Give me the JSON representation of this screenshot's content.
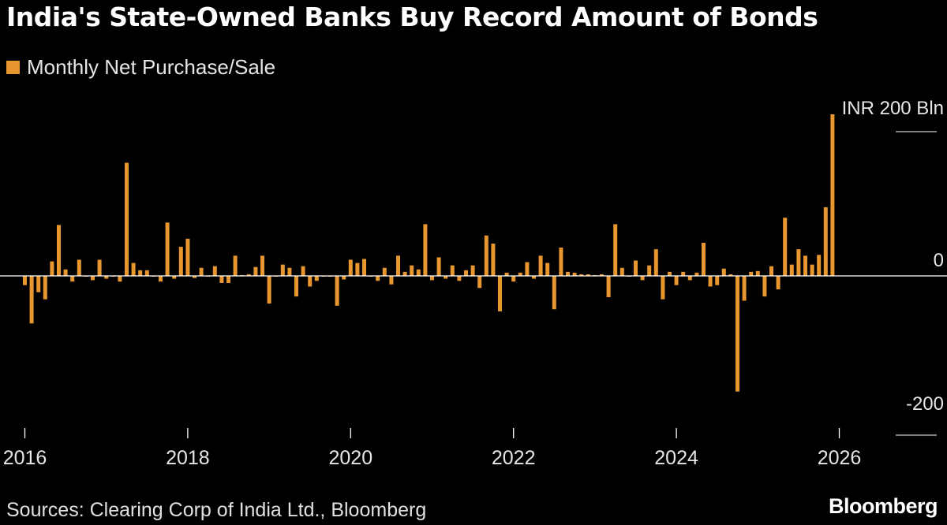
{
  "colors": {
    "bar": "#e8972e",
    "background": "#000000",
    "text": "#ffffff",
    "zero_line": "#ffffff"
  },
  "source": "Sources: Clearing Corp of India Ltd., Bloomberg",
  "brand": "Bloomberg",
  "chart_data": {
    "type": "bar",
    "title": "India's State-Owned Banks Buy Record Amount of Bonds",
    "series": [
      {
        "name": "Monthly Net Purchase/Sale"
      }
    ],
    "unit_label": "INR 200  Bln",
    "ylim": [
      -200,
      200
    ],
    "yticks": [
      {
        "value": 200,
        "label": "INR 200  Bln"
      },
      {
        "value": 0,
        "label": "0"
      },
      {
        "value": -200,
        "label": "-200"
      }
    ],
    "xticks": [
      "2016",
      "2018",
      "2020",
      "2022",
      "2024",
      "2026"
    ],
    "start": "2016-01",
    "values": [
      -13,
      -67,
      -23,
      -33,
      18,
      63,
      8,
      -8,
      20,
      0,
      -6,
      20,
      -4,
      0,
      -8,
      140,
      16,
      7,
      7,
      0,
      -8,
      66,
      -4,
      36,
      46,
      -3,
      10,
      0,
      12,
      -10,
      -10,
      25,
      1,
      2,
      11,
      25,
      -39,
      0,
      14,
      10,
      -29,
      12,
      -15,
      -7,
      0,
      0,
      -42,
      -5,
      20,
      16,
      21,
      0,
      -7,
      10,
      -12,
      25,
      5,
      13,
      8,
      64,
      -6,
      23,
      -4,
      13,
      -7,
      7,
      13,
      -17,
      50,
      40,
      -50,
      4,
      -8,
      4,
      17,
      -4,
      25,
      16,
      -47,
      35,
      5,
      4,
      2,
      2,
      1,
      2,
      -30,
      64,
      10,
      0,
      19,
      -6,
      13,
      33,
      -33,
      5,
      -13,
      5,
      -6,
      4,
      41,
      -15,
      -13,
      9,
      2,
      -163,
      -35,
      5,
      6,
      -29,
      12,
      -19,
      72,
      14,
      33,
      25,
      14,
      26,
      85,
      200
    ]
  }
}
